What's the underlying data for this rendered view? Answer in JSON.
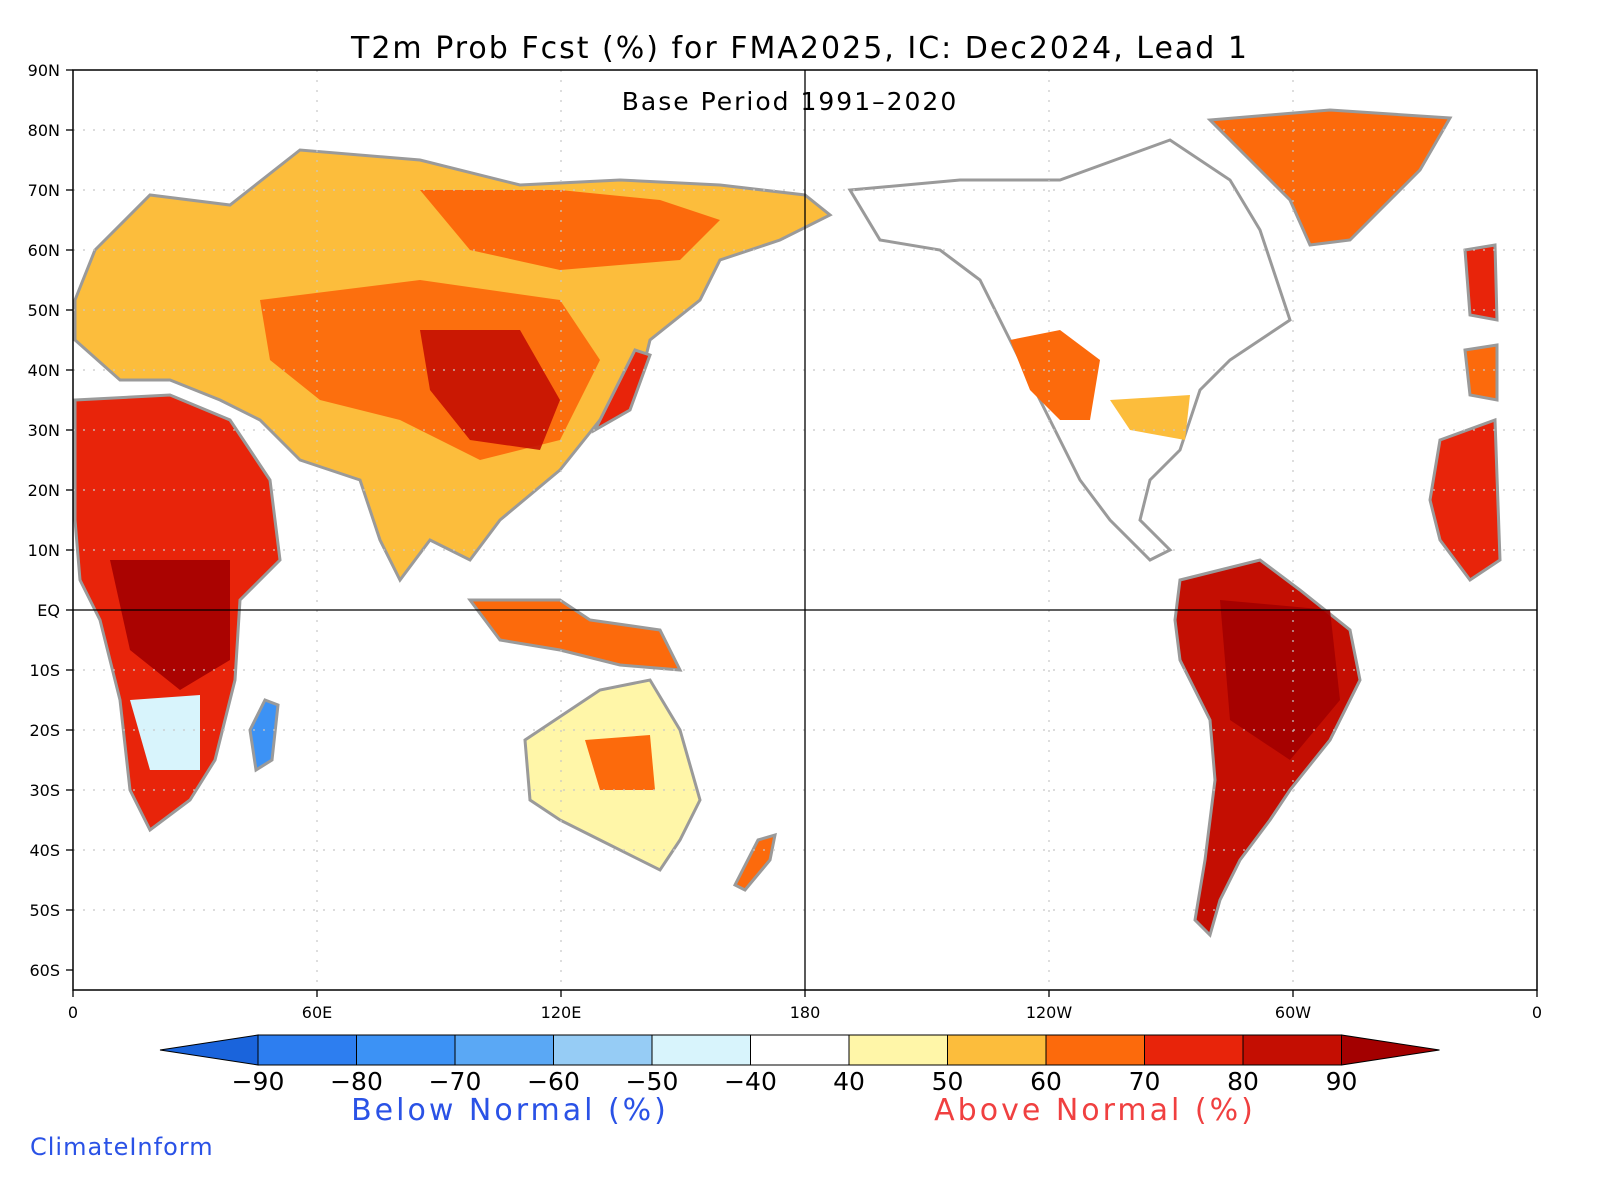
{
  "title": "T2m Prob Fcst (%) for FMA2025, IC: Dec2024, Lead 1",
  "subtitle": "Base Period 1991–2020",
  "credit": "ClimateInform",
  "lat_labels": [
    "90N",
    "80N",
    "70N",
    "60N",
    "50N",
    "40N",
    "30N",
    "20N",
    "10N",
    "EQ",
    "10S",
    "20S",
    "30S",
    "40S",
    "50S",
    "60S"
  ],
  "lon_labels": [
    "0",
    "60E",
    "120E",
    "180",
    "120W",
    "60W",
    "0"
  ],
  "colorbar": {
    "ticks": [
      "−90",
      "−80",
      "−70",
      "−60",
      "−50",
      "−40",
      "40",
      "50",
      "60",
      "70",
      "80",
      "90"
    ],
    "below_label": "Below Normal (%)",
    "above_label": "Above Normal (%)",
    "colors": [
      "#1a64dc",
      "#2d7ef0",
      "#3c92f5",
      "#5aa8f5",
      "#96ccf5",
      "#d8f4fc",
      "#ffffff",
      "#fff6a8",
      "#fcbd3c",
      "#fc6a0c",
      "#e8240a",
      "#c40e02",
      "#a30000"
    ]
  },
  "below_color": "#2a52e6",
  "above_color": "#f04040",
  "map": {
    "lat_range": [
      -60,
      90
    ],
    "lon_range": [
      0,
      360
    ],
    "land_outline_color": "#999999",
    "gridline_style": "dotted"
  }
}
